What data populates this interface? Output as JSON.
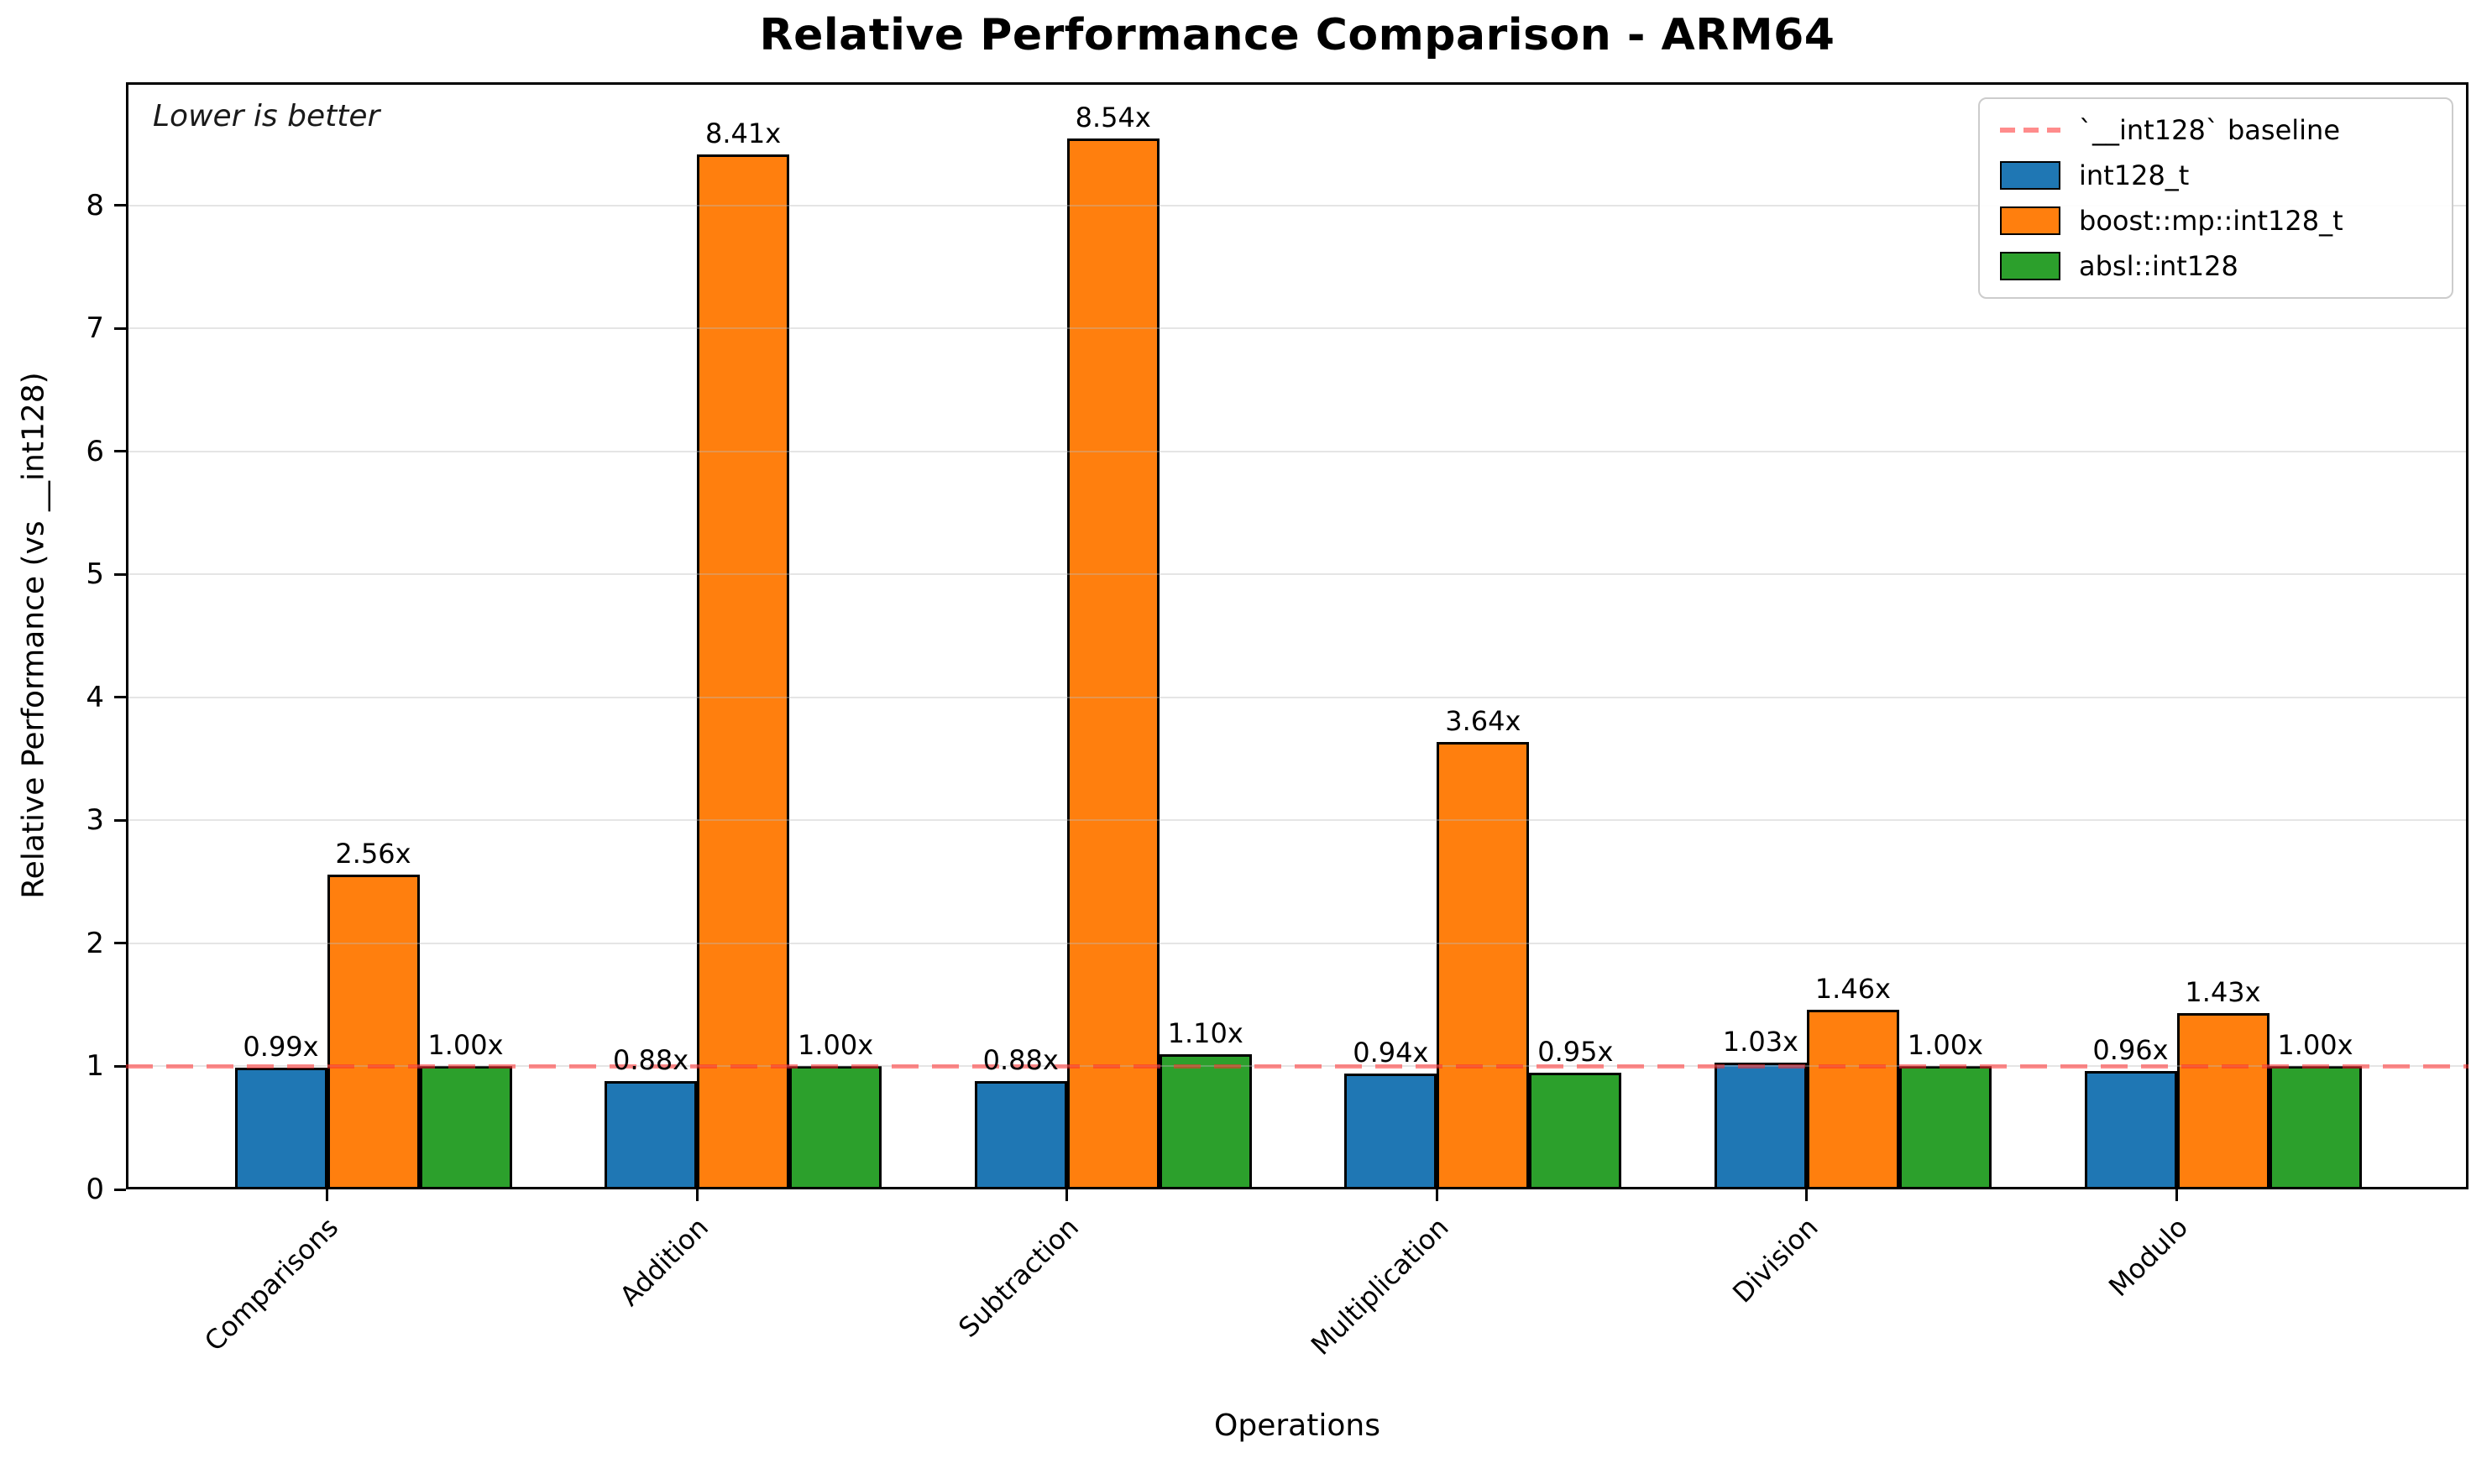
{
  "chart_data": {
    "type": "bar",
    "title": "Relative Performance Comparison - ARM64",
    "xlabel": "Operations",
    "ylabel": "Relative Performance (vs __int128)",
    "annotation": "Lower is better",
    "categories": [
      "Comparisons",
      "Addition",
      "Subtraction",
      "Multiplication",
      "Division",
      "Modulo"
    ],
    "series": [
      {
        "name": "int128_t",
        "color": "#1f77b4",
        "values": [
          0.99,
          0.88,
          0.88,
          0.94,
          1.03,
          0.96
        ],
        "labels": [
          "0.99x",
          "0.88x",
          "0.88x",
          "0.94x",
          "1.03x",
          "0.96x"
        ]
      },
      {
        "name": "boost::mp::int128_t",
        "color": "#ff7f0e",
        "values": [
          2.56,
          8.41,
          8.54,
          3.64,
          1.46,
          1.43
        ],
        "labels": [
          "2.56x",
          "8.41x",
          "8.54x",
          "3.64x",
          "1.46x",
          "1.43x"
        ]
      },
      {
        "name": "absl::int128",
        "color": "#2ca02c",
        "values": [
          1.0,
          1.0,
          1.1,
          0.95,
          1.0,
          1.0
        ],
        "labels": [
          "1.00x",
          "1.00x",
          "1.10x",
          "0.95x",
          "1.00x",
          "1.00x"
        ]
      }
    ],
    "baseline": {
      "value": 1.0,
      "label": "`__int128` baseline",
      "color": "#ff2d2d"
    },
    "ylim": [
      0,
      9
    ],
    "yticks": [
      0,
      1,
      2,
      3,
      4,
      5,
      6,
      7,
      8
    ],
    "grid": "horizontal",
    "legend_position": "upper right",
    "lower_is_better": true
  }
}
